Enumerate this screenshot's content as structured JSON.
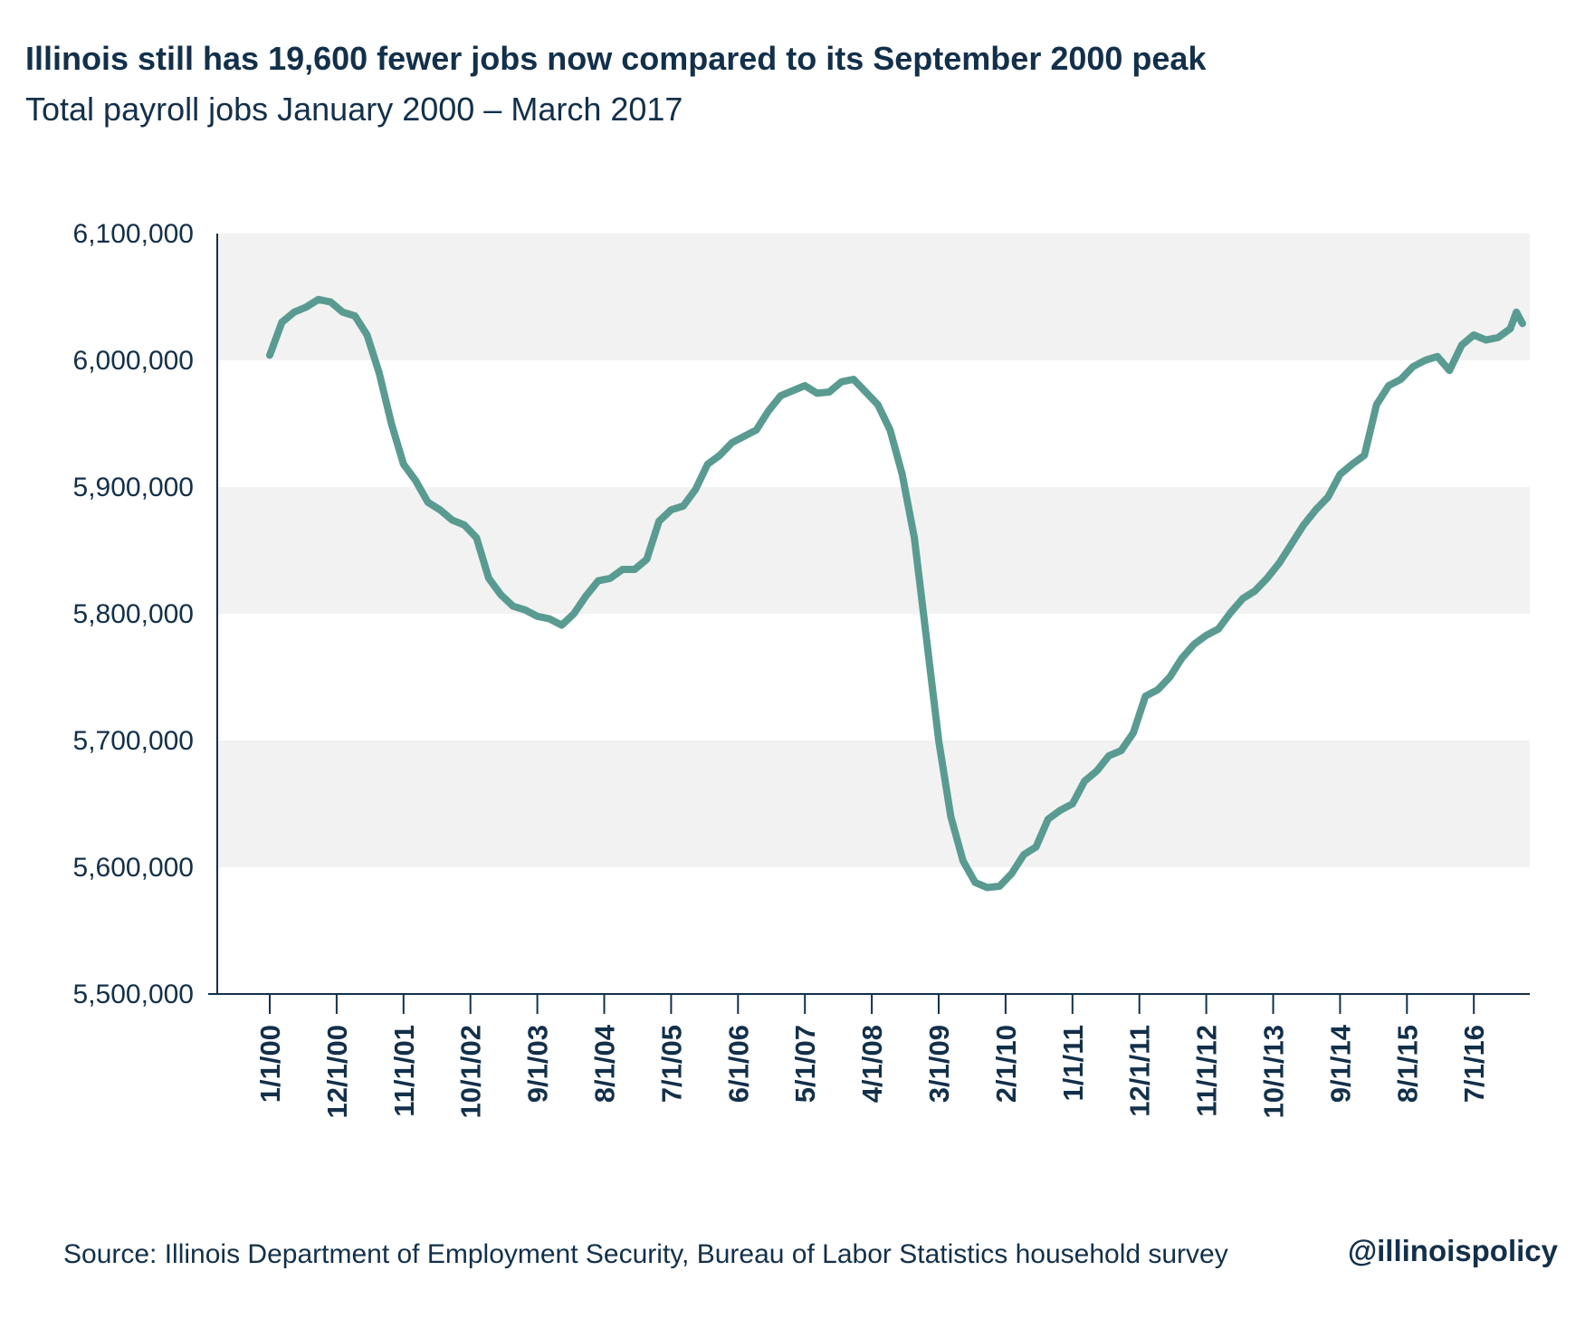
{
  "header": {
    "title": "Illinois still has 19,600 fewer jobs now compared to its September 2000 peak",
    "subtitle": "Total payroll jobs January 2000 – March 2017"
  },
  "footer": {
    "source": "Source: Illinois Department of Employment Security, Bureau of Labor Statistics household survey",
    "handle": "@illinoispolicy"
  },
  "colors": {
    "line": "#5a9b91",
    "band": "#f2f2f2",
    "text": "#13304a",
    "axis": "#13304a"
  },
  "chart_data": {
    "type": "line",
    "title": "Illinois still has 19,600 fewer jobs now compared to its September 2000 peak",
    "subtitle": "Total payroll jobs January 2000 – March 2017",
    "xlabel": "",
    "ylabel": "",
    "ylim": [
      5500000,
      6100000
    ],
    "yticks": [
      5500000,
      5600000,
      5700000,
      5800000,
      5900000,
      6000000,
      6100000
    ],
    "ytick_labels": [
      "5,500,000",
      "5,600,000",
      "5,700,000",
      "5,800,000",
      "5,900,000",
      "6,000,000",
      "6,100,000"
    ],
    "xtick_labels": [
      "1/1/00",
      "12/1/00",
      "11/1/01",
      "10/1/02",
      "9/1/03",
      "8/1/04",
      "7/1/05",
      "6/1/06",
      "5/1/07",
      "4/1/08",
      "3/1/09",
      "2/1/10",
      "1/1/11",
      "12/1/11",
      "11/1/12",
      "10/1/13",
      "9/1/14",
      "8/1/15",
      "7/1/16"
    ],
    "grid": "alternating horizontal bands",
    "legend": "none",
    "series": [
      {
        "x": [
          "2000-01",
          "2000-03",
          "2000-05",
          "2000-07",
          "2000-09",
          "2000-11",
          "2001-01",
          "2001-03",
          "2001-05",
          "2001-07",
          "2001-09",
          "2001-11",
          "2002-01",
          "2002-03",
          "2002-05",
          "2002-07",
          "2002-09",
          "2002-11",
          "2003-01",
          "2003-03",
          "2003-05",
          "2003-07",
          "2003-09",
          "2003-11",
          "2004-01",
          "2004-03",
          "2004-05",
          "2004-07",
          "2004-09",
          "2004-11",
          "2005-01",
          "2005-03",
          "2005-05",
          "2005-07",
          "2005-09",
          "2005-11",
          "2006-01",
          "2006-03",
          "2006-05",
          "2006-07",
          "2006-09",
          "2006-11",
          "2007-01",
          "2007-03",
          "2007-05",
          "2007-07",
          "2007-09",
          "2007-11",
          "2008-01",
          "2008-03",
          "2008-05",
          "2008-07",
          "2008-09",
          "2008-11",
          "2009-01",
          "2009-03",
          "2009-05",
          "2009-07",
          "2009-09",
          "2009-11",
          "2010-01",
          "2010-03",
          "2010-05",
          "2010-07",
          "2010-09",
          "2010-11",
          "2011-01",
          "2011-03",
          "2011-05",
          "2011-07",
          "2011-09",
          "2011-11",
          "2012-01",
          "2012-03",
          "2012-05",
          "2012-07",
          "2012-09",
          "2012-11",
          "2013-01",
          "2013-03",
          "2013-05",
          "2013-07",
          "2013-09",
          "2013-11",
          "2014-01",
          "2014-03",
          "2014-05",
          "2014-07",
          "2014-09",
          "2014-11",
          "2015-01",
          "2015-03",
          "2015-05",
          "2015-07",
          "2015-09",
          "2015-11",
          "2016-01",
          "2016-03",
          "2016-05",
          "2016-07",
          "2016-09",
          "2016-11",
          "2017-01",
          "2017-02",
          "2017-03"
        ],
        "values": [
          6004000,
          6030000,
          6038000,
          6042000,
          6048000,
          6046000,
          6038000,
          6035000,
          6020000,
          5990000,
          5950000,
          5918000,
          5905000,
          5888000,
          5882000,
          5874000,
          5870000,
          5860000,
          5828000,
          5815000,
          5806000,
          5803000,
          5798000,
          5796000,
          5791000,
          5800000,
          5814000,
          5826000,
          5828000,
          5835000,
          5835000,
          5843000,
          5873000,
          5882000,
          5885000,
          5898000,
          5918000,
          5925000,
          5935000,
          5940000,
          5945000,
          5960000,
          5972000,
          5976000,
          5980000,
          5974000,
          5975000,
          5983000,
          5985000,
          5975000,
          5965000,
          5945000,
          5910000,
          5860000,
          5780000,
          5700000,
          5640000,
          5605000,
          5588000,
          5584000,
          5585000,
          5595000,
          5610000,
          5616000,
          5638000,
          5645000,
          5650000,
          5668000,
          5676000,
          5688000,
          5692000,
          5706000,
          5735000,
          5740000,
          5750000,
          5765000,
          5776000,
          5783000,
          5788000,
          5801000,
          5812000,
          5818000,
          5828000,
          5840000,
          5855000,
          5870000,
          5882000,
          5892000,
          5910000,
          5918000,
          5925000,
          5965000,
          5980000,
          5985000,
          5995000,
          6000000,
          6003000,
          5992000,
          6012000,
          6020000,
          6016000,
          6018000,
          6025000,
          6038000,
          6029000
        ]
      }
    ]
  }
}
